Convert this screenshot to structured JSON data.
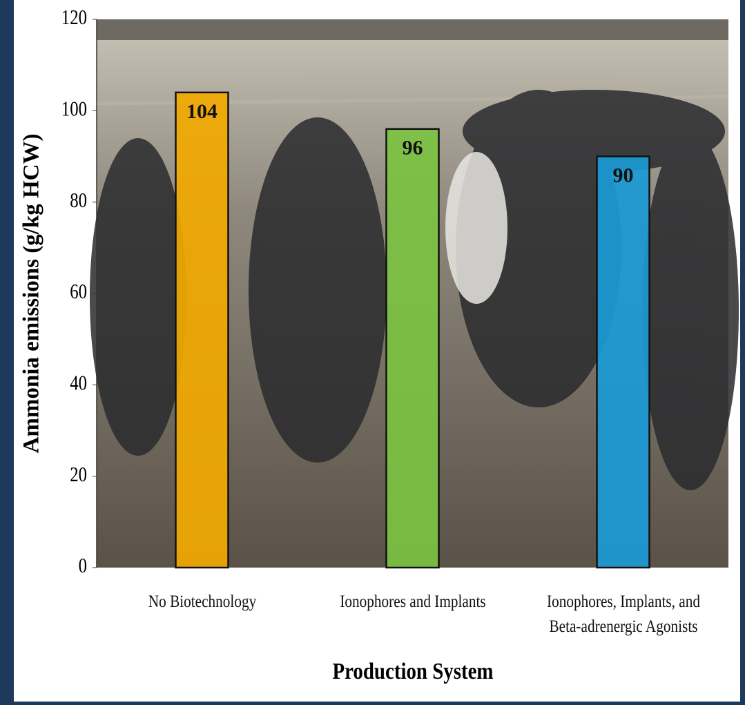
{
  "chart_data": {
    "type": "bar",
    "y_label": "Ammonia emissions (g/kg HCW)",
    "x_label": "Production System",
    "categories": [
      "No Biotechnology",
      "Ionophores and Implants",
      "Ionophores, Implants, and\nBeta-adrenergic Agonists"
    ],
    "values": [
      104,
      96,
      90
    ],
    "colors": [
      "#f2a900",
      "#7cc242",
      "#1a9ad6"
    ],
    "ylim": [
      0,
      120
    ],
    "yticks": [
      0,
      20,
      40,
      60,
      80,
      100,
      120
    ]
  }
}
